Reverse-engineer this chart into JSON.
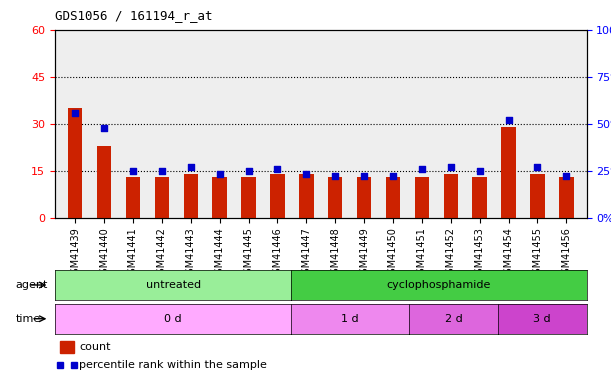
{
  "title": "GDS1056 / 161194_r_at",
  "samples": [
    "GSM41439",
    "GSM41440",
    "GSM41441",
    "GSM41442",
    "GSM41443",
    "GSM41444",
    "GSM41445",
    "GSM41446",
    "GSM41447",
    "GSM41448",
    "GSM41449",
    "GSM41450",
    "GSM41451",
    "GSM41452",
    "GSM41453",
    "GSM41454",
    "GSM41455",
    "GSM41456"
  ],
  "counts": [
    35,
    23,
    13,
    13,
    14,
    13,
    13,
    14,
    14,
    13,
    13,
    13,
    13,
    14,
    13,
    29,
    14,
    13
  ],
  "percentiles": [
    56,
    48,
    25,
    25,
    27,
    23,
    25,
    26,
    23,
    22,
    22,
    22,
    26,
    27,
    25,
    52,
    27,
    22
  ],
  "ylim_left": [
    0,
    60
  ],
  "ylim_right": [
    0,
    100
  ],
  "yticks_left": [
    0,
    15,
    30,
    45,
    60
  ],
  "yticks_right": [
    0,
    25,
    50,
    75,
    100
  ],
  "ytick_labels_left": [
    "0",
    "15",
    "30",
    "45",
    "60"
  ],
  "ytick_labels_right": [
    "0%",
    "25%",
    "50%",
    "75%",
    "100%"
  ],
  "bar_color": "#CC2200",
  "dot_color": "#0000CC",
  "agent_untreated_samples": [
    "GSM41439",
    "GSM41440",
    "GSM41441",
    "GSM41442",
    "GSM41443",
    "GSM41444",
    "GSM41445",
    "GSM41446"
  ],
  "agent_cyclo_samples": [
    "GSM41447",
    "GSM41448",
    "GSM41449",
    "GSM41450",
    "GSM41451",
    "GSM41452",
    "GSM41453",
    "GSM41454",
    "GSM41455",
    "GSM41456"
  ],
  "time_0d_samples": [
    "GSM41439",
    "GSM41440",
    "GSM41441",
    "GSM41442",
    "GSM41443",
    "GSM41444",
    "GSM41445",
    "GSM41446"
  ],
  "time_1d_samples": [
    "GSM41447",
    "GSM41448",
    "GSM41449",
    "GSM41450"
  ],
  "time_2d_samples": [
    "GSM41451",
    "GSM41452",
    "GSM41453"
  ],
  "time_3d_samples": [
    "GSM41454",
    "GSM41455",
    "GSM41456"
  ],
  "color_untreated": "#99EE99",
  "color_cyclo": "#44CC44",
  "color_0d": "#FFAAFF",
  "color_1d": "#EE88EE",
  "color_2d": "#DD66DD",
  "color_3d": "#CC44CC",
  "grid_color": "#000000",
  "bg_color": "#FFFFFF",
  "plot_bg": "#EEEEEE",
  "legend_count_color": "#CC2200",
  "legend_pct_color": "#0000CC",
  "dotted_line_color": "#000000"
}
